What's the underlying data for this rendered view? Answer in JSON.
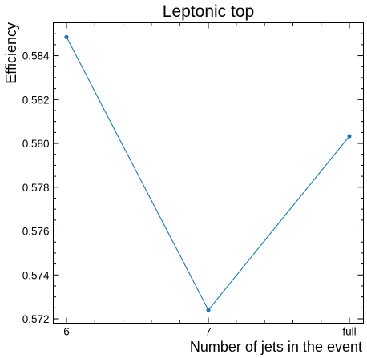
{
  "chart_data": {
    "type": "line",
    "title": "Leptonic top",
    "xlabel": "Number of jets in the event",
    "ylabel": "Efficiency",
    "categories": [
      "6",
      "7",
      "full"
    ],
    "series": [
      {
        "values": [
          0.58485,
          0.5724,
          0.58033
        ]
      }
    ],
    "ylim": [
      0.5718,
      0.5855
    ],
    "yticks": [
      0.572,
      0.574,
      0.576,
      0.578,
      0.58,
      0.582,
      0.584
    ],
    "ytick_labels": [
      "0.572",
      "0.574",
      "0.576",
      "0.578",
      "0.580",
      "0.582",
      "0.584"
    ],
    "yminor_step": 0.0005,
    "grid": false,
    "legend": "none",
    "line_color": "#1f77b4"
  }
}
